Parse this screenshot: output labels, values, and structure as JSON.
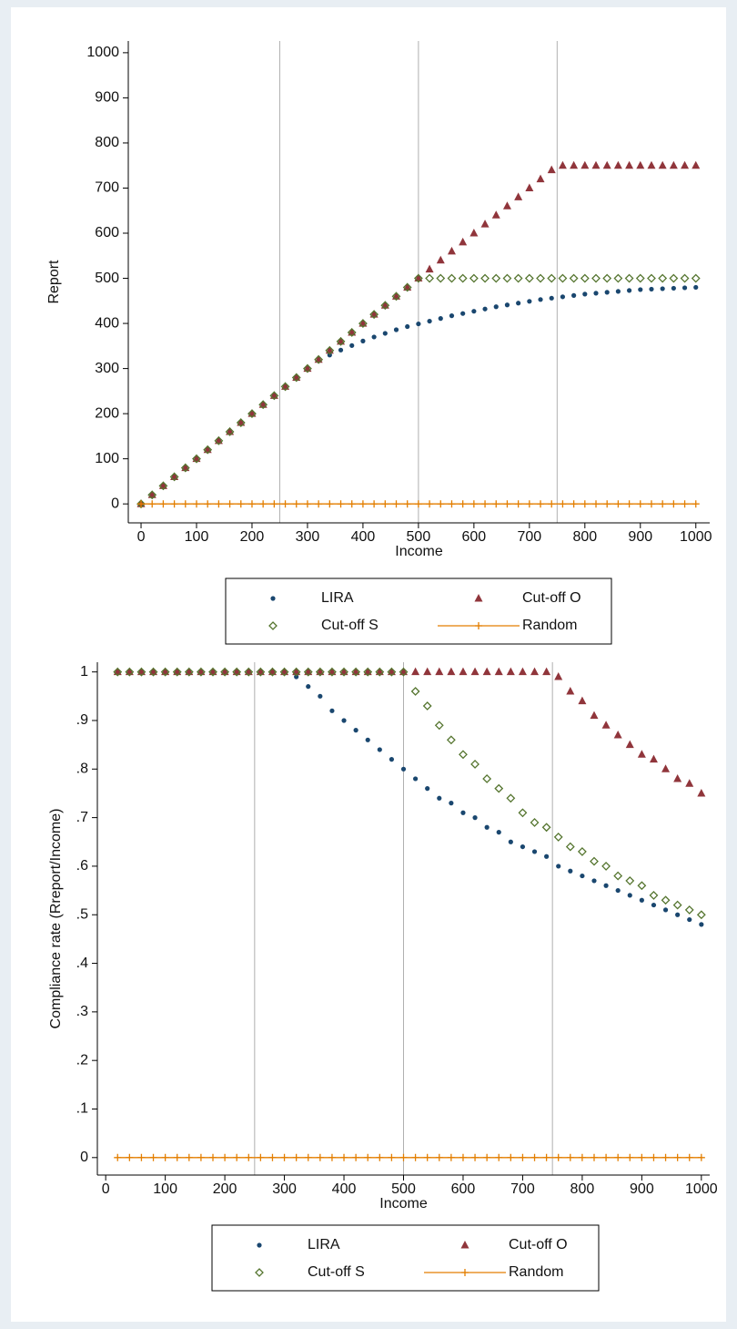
{
  "chart_data": [
    {
      "type": "scatter",
      "y_label": "Report",
      "x_label": "Income",
      "x": [
        0,
        20,
        40,
        60,
        80,
        100,
        120,
        140,
        160,
        180,
        200,
        220,
        240,
        260,
        280,
        300,
        320,
        340,
        360,
        380,
        400,
        420,
        440,
        460,
        480,
        500,
        520,
        540,
        560,
        580,
        600,
        620,
        640,
        660,
        680,
        700,
        720,
        740,
        760,
        780,
        800,
        820,
        840,
        860,
        880,
        900,
        920,
        940,
        960,
        980,
        1000
      ],
      "series": [
        {
          "name": "LIRA",
          "color": "#1a476f",
          "marker": "circle",
          "values": [
            0,
            20,
            40,
            60,
            80,
            100,
            120,
            140,
            160,
            180,
            200,
            220,
            240,
            260,
            280,
            300,
            318,
            330,
            341,
            351,
            361,
            370,
            378,
            386,
            393,
            399,
            405,
            411,
            417,
            422,
            427,
            432,
            437,
            441,
            445,
            449,
            453,
            456,
            459,
            462,
            465,
            467,
            469,
            471,
            473,
            475,
            476,
            477,
            478,
            479,
            480
          ]
        },
        {
          "name": "Cut-off O",
          "color": "#90353b",
          "marker": "triangle",
          "values": [
            0,
            20,
            40,
            60,
            80,
            100,
            120,
            140,
            160,
            180,
            200,
            220,
            240,
            260,
            280,
            300,
            320,
            340,
            360,
            380,
            400,
            420,
            440,
            460,
            480,
            500,
            520,
            540,
            560,
            580,
            600,
            620,
            640,
            660,
            680,
            700,
            720,
            740,
            750,
            750,
            750,
            750,
            750,
            750,
            750,
            750,
            750,
            750,
            750,
            750,
            750
          ]
        },
        {
          "name": "Cut-off S",
          "color": "#55752f",
          "marker": "diamond",
          "values": [
            0,
            20,
            40,
            60,
            80,
            100,
            120,
            140,
            160,
            180,
            200,
            220,
            240,
            260,
            280,
            300,
            320,
            340,
            360,
            380,
            400,
            420,
            440,
            460,
            480,
            500,
            500,
            500,
            500,
            500,
            500,
            500,
            500,
            500,
            500,
            500,
            500,
            500,
            500,
            500,
            500,
            500,
            500,
            500,
            500,
            500,
            500,
            500,
            500,
            500,
            500
          ]
        },
        {
          "name": "Random",
          "color": "#e37e00",
          "marker": "plus",
          "connect": true,
          "values": [
            0,
            0,
            0,
            0,
            0,
            0,
            0,
            0,
            0,
            0,
            0,
            0,
            0,
            0,
            0,
            0,
            0,
            0,
            0,
            0,
            0,
            0,
            0,
            0,
            0,
            0,
            0,
            0,
            0,
            0,
            0,
            0,
            0,
            0,
            0,
            0,
            0,
            0,
            0,
            0,
            0,
            0,
            0,
            0,
            0,
            0,
            0,
            0,
            0,
            0,
            0
          ]
        }
      ],
      "xlim": [
        -23,
        1025
      ],
      "ylim": [
        -42,
        1026
      ],
      "xticks": [
        0,
        100,
        200,
        300,
        400,
        500,
        600,
        700,
        800,
        900,
        1000
      ],
      "yticks": [
        0,
        100,
        200,
        300,
        400,
        500,
        600,
        700,
        800,
        900,
        1000
      ],
      "xlines": [
        250,
        500,
        750
      ],
      "grid": false,
      "legend": "bottom"
    },
    {
      "type": "scatter",
      "y_label": "Compliance rate (Rreport/Income)",
      "x_label": "Income",
      "x": [
        20,
        40,
        60,
        80,
        100,
        120,
        140,
        160,
        180,
        200,
        220,
        240,
        260,
        280,
        300,
        320,
        340,
        360,
        380,
        400,
        420,
        440,
        460,
        480,
        500,
        520,
        540,
        560,
        580,
        600,
        620,
        640,
        660,
        680,
        700,
        720,
        740,
        760,
        780,
        800,
        820,
        840,
        860,
        880,
        900,
        920,
        940,
        960,
        980,
        1000
      ],
      "series": [
        {
          "name": "LIRA",
          "color": "#1a476f",
          "marker": "circle",
          "values": [
            1,
            1,
            1,
            1,
            1,
            1,
            1,
            1,
            1,
            1,
            1,
            1,
            1,
            1,
            1,
            0.99,
            0.97,
            0.95,
            0.92,
            0.9,
            0.88,
            0.86,
            0.84,
            0.82,
            0.8,
            0.78,
            0.76,
            0.74,
            0.73,
            0.71,
            0.7,
            0.68,
            0.67,
            0.65,
            0.64,
            0.63,
            0.62,
            0.6,
            0.59,
            0.58,
            0.57,
            0.56,
            0.55,
            0.54,
            0.53,
            0.52,
            0.51,
            0.5,
            0.49,
            0.48
          ]
        },
        {
          "name": "Cut-off O",
          "color": "#90353b",
          "marker": "triangle",
          "values": [
            1,
            1,
            1,
            1,
            1,
            1,
            1,
            1,
            1,
            1,
            1,
            1,
            1,
            1,
            1,
            1,
            1,
            1,
            1,
            1,
            1,
            1,
            1,
            1,
            1,
            1,
            1,
            1,
            1,
            1,
            1,
            1,
            1,
            1,
            1,
            1,
            1,
            0.99,
            0.96,
            0.94,
            0.91,
            0.89,
            0.87,
            0.85,
            0.83,
            0.82,
            0.8,
            0.78,
            0.77,
            0.75
          ]
        },
        {
          "name": "Cut-off S",
          "color": "#55752f",
          "marker": "diamond",
          "values": [
            1,
            1,
            1,
            1,
            1,
            1,
            1,
            1,
            1,
            1,
            1,
            1,
            1,
            1,
            1,
            1,
            1,
            1,
            1,
            1,
            1,
            1,
            1,
            1,
            1,
            0.96,
            0.93,
            0.89,
            0.86,
            0.83,
            0.81,
            0.78,
            0.76,
            0.74,
            0.71,
            0.69,
            0.68,
            0.66,
            0.64,
            0.63,
            0.61,
            0.6,
            0.58,
            0.57,
            0.56,
            0.54,
            0.53,
            0.52,
            0.51,
            0.5
          ]
        },
        {
          "name": "Random",
          "color": "#e37e00",
          "marker": "plus",
          "connect": true,
          "values": [
            0,
            0,
            0,
            0,
            0,
            0,
            0,
            0,
            0,
            0,
            0,
            0,
            0,
            0,
            0,
            0,
            0,
            0,
            0,
            0,
            0,
            0,
            0,
            0,
            0,
            0,
            0,
            0,
            0,
            0,
            0,
            0,
            0,
            0,
            0,
            0,
            0,
            0,
            0,
            0,
            0,
            0,
            0,
            0,
            0,
            0,
            0,
            0,
            0,
            0
          ]
        }
      ],
      "xlim": [
        -14,
        1014
      ],
      "ylim": [
        -0.036,
        1.02
      ],
      "xticks": [
        0,
        100,
        200,
        300,
        400,
        500,
        600,
        700,
        800,
        900,
        1000
      ],
      "yticks": [
        0,
        {
          "value": 0.1,
          "label": ".1"
        },
        {
          "value": 0.2,
          "label": ".2"
        },
        {
          "value": 0.3,
          "label": ".3"
        },
        {
          "value": 0.4,
          "label": ".4"
        },
        {
          "value": 0.5,
          "label": ".5"
        },
        {
          "value": 0.6,
          "label": ".6"
        },
        {
          "value": 0.7,
          "label": ".7"
        },
        {
          "value": 0.8,
          "label": ".8"
        },
        {
          "value": 0.9,
          "label": ".9"
        },
        1
      ],
      "xlines": [
        250,
        500,
        750
      ],
      "grid": false,
      "legend": "bottom"
    }
  ]
}
